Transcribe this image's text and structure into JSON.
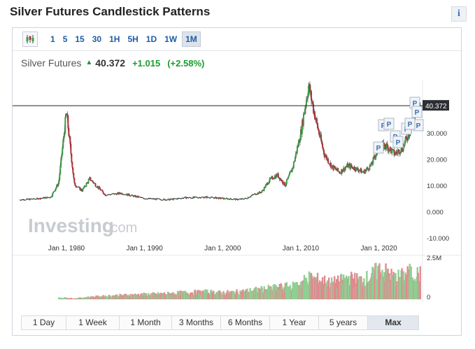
{
  "page": {
    "title": "Silver Futures Candlestick Patterns",
    "info_glyph": "i"
  },
  "toolbar": {
    "chart_type_icon": "candlestick-icon",
    "timeframes": [
      "1",
      "5",
      "15",
      "30",
      "1H",
      "5H",
      "1D",
      "1W",
      "1M"
    ],
    "active_timeframe": "1M"
  },
  "quote": {
    "name": "Silver Futures",
    "direction": "up",
    "price": "40.372",
    "change": "+1.015",
    "change_pct": "(+2.58%)",
    "up_color": "#1a9c2e"
  },
  "watermark": {
    "brand": "Investing",
    "suffix": ".com"
  },
  "chart": {
    "price_label": "40.372",
    "marker_label": "P"
  },
  "ranges": {
    "items": [
      "1 Day",
      "1 Week",
      "1 Month",
      "3 Months",
      "6 Months",
      "1 Year",
      "5 years",
      "Max"
    ],
    "active": "Max"
  },
  "colors": {
    "up": "#3f9e4a",
    "down": "#b8333a",
    "volume_up": "#8fcf93",
    "volume_down": "#e08a8f",
    "link": "#1e5ba8"
  },
  "chart_data": {
    "type": "candlestick",
    "title": "",
    "x": [
      "1974",
      "1976",
      "1978",
      "1979",
      "1980",
      "1981",
      "1982",
      "1983",
      "1985",
      "1987",
      "1990",
      "1993",
      "1995",
      "1998",
      "2000",
      "2002",
      "2003",
      "2004",
      "2005",
      "2006",
      "2007",
      "2008",
      "2009",
      "2010",
      "2011",
      "2012",
      "2013",
      "2014",
      "2015",
      "2016",
      "2017",
      "2018",
      "2019",
      "2020",
      "2021",
      "2022",
      "2023",
      "2024",
      "2025"
    ],
    "y": [
      4.5,
      4.8,
      5.5,
      11.0,
      38.0,
      10.5,
      8.0,
      12.5,
      6.3,
      7.0,
      5.0,
      4.5,
      5.2,
      5.5,
      5.0,
      4.6,
      5.0,
      6.5,
      7.5,
      12.0,
      14.0,
      10.0,
      17.0,
      30.0,
      48.0,
      34.0,
      22.0,
      17.0,
      15.0,
      17.5,
      16.5,
      15.0,
      17.5,
      25.0,
      25.0,
      22.0,
      24.0,
      31.0,
      40.372
    ],
    "x_ticks": [
      "Jan 1, 1980",
      "Jan 1, 1990",
      "Jan 1, 2000",
      "Jan 1, 2010",
      "Jan 1, 2020"
    ],
    "y_ticks": [
      "30.000",
      "20.000",
      "10.000",
      "0.000",
      "-10.000"
    ],
    "ylim": [
      -10,
      50
    ],
    "volume_ticks": [
      "2.5M",
      "0"
    ],
    "volume": [
      0,
      0,
      0,
      0.1,
      0.1,
      0.05,
      0.1,
      0.15,
      0.2,
      0.25,
      0.3,
      0.35,
      0.4,
      0.45,
      0.4,
      0.45,
      0.5,
      0.55,
      0.6,
      0.65,
      0.7,
      0.75,
      0.8,
      1.0,
      1.3,
      1.2,
      1.1,
      1.0,
      1.1,
      1.3,
      1.2,
      1.2,
      1.4,
      1.8,
      1.6,
      1.3,
      1.4,
      1.6,
      1.5
    ],
    "markers": [
      "P",
      "P",
      "P",
      "P",
      "P",
      "P",
      "P",
      "P",
      "P",
      "P"
    ]
  }
}
